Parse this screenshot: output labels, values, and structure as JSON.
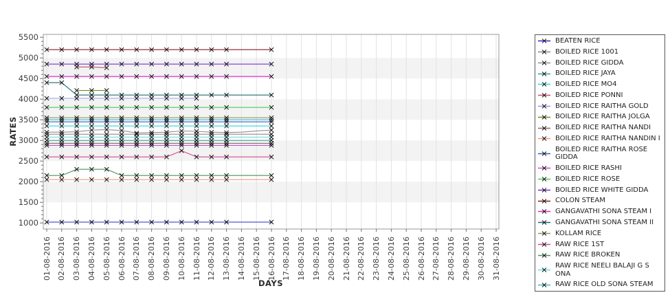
{
  "chart_data": {
    "type": "line",
    "title": "",
    "xlabel": "DAYS",
    "ylabel": "RATES",
    "ylim": [
      1000,
      5500
    ],
    "y_tick_step": 500,
    "y_ticks": [
      1000,
      1500,
      2000,
      2500,
      3000,
      3500,
      4000,
      4500,
      5000,
      5500
    ],
    "grid": true,
    "legend_position": "right",
    "marker_style": "x",
    "marker_color": "#111111",
    "band_color": "#f3f3f3",
    "x_labels": [
      "01-08-2016",
      "02-08-2016",
      "03-08-2016",
      "04-08-2016",
      "05-08-2016",
      "06-08-2016",
      "07-08-2016",
      "08-08-2016",
      "09-08-2016",
      "10-08-2016",
      "11-08-2016",
      "12-08-2016",
      "13-08-2016",
      "14-08-2016",
      "15-08-2016",
      "16-08-2016",
      "17-08-2016",
      "18-08-2016",
      "19-08-2016",
      "20-08-2016",
      "21-08-2016",
      "22-08-2016",
      "23-08-2016",
      "24-08-2016",
      "25-08-2016",
      "26-08-2016",
      "27-08-2016",
      "28-08-2016",
      "29-08-2016",
      "30-08-2016",
      "31-08-2016"
    ],
    "data_day_count": 16,
    "marker_days": [
      1,
      2,
      3,
      4,
      5,
      6,
      7,
      8,
      9,
      10,
      11,
      12,
      13,
      16
    ],
    "series": [
      {
        "name": "BEATEN RICE",
        "color": "#2929c8",
        "values": [
          1020,
          1020,
          1020,
          1020,
          1020,
          1020,
          1020,
          1020,
          1020,
          1020,
          1020,
          1020,
          1020,
          1020,
          1020,
          1020
        ]
      },
      {
        "name": "BOILED RICE 1001",
        "color": "#9e8080",
        "values": [
          3150,
          3150,
          3150,
          3150,
          3150,
          3150,
          3150,
          3150,
          3150,
          3150,
          3150,
          3150,
          3150,
          3150,
          3150,
          3150
        ]
      },
      {
        "name": "BOILED RICE GIDDA",
        "color": "#8f8f8f",
        "values": [
          3200,
          3200,
          3210,
          3250,
          3260,
          3240,
          3180,
          3190,
          3200,
          3230,
          3220,
          3200,
          3190,
          3200,
          3230,
          3250
        ]
      },
      {
        "name": "BOILED RICE JAYA",
        "color": "#33a0a0",
        "values": [
          3000,
          3000,
          3000,
          3000,
          3000,
          3000,
          3000,
          3000,
          3000,
          3000,
          3000,
          3000,
          3000,
          3000,
          3000,
          3000
        ]
      },
      {
        "name": "BOILED RICE MO4",
        "color": "#2fd0e0",
        "values": [
          3350,
          3350,
          3350,
          3350,
          3350,
          3350,
          3350,
          3350,
          3350,
          3350,
          3350,
          3350,
          3350,
          3350,
          3350,
          3350
        ]
      },
      {
        "name": "BOILED RICE PONNI",
        "color": "#c94a6e",
        "values": [
          null,
          null,
          4780,
          4780,
          4760,
          null,
          null,
          null,
          null,
          null,
          null,
          null,
          null,
          null,
          null,
          null
        ]
      },
      {
        "name": "BOILED RICE RAITHA GOLD",
        "color": "#8c9ae8",
        "values": [
          4020,
          4020,
          4020,
          4020,
          4020,
          4020,
          4020,
          4020,
          4020,
          4020,
          4020,
          null,
          null,
          null,
          null,
          null
        ]
      },
      {
        "name": "BOILED RICE RAITHA JOLGA",
        "color": "#6b8e23",
        "values": [
          null,
          null,
          4210,
          4210,
          4210,
          null,
          null,
          null,
          null,
          null,
          null,
          null,
          null,
          null,
          null,
          null
        ]
      },
      {
        "name": "BOILED RICE RAITHA NANDI",
        "color": "#8d6a6a",
        "values": [
          2930,
          2930,
          2930,
          2930,
          2930,
          2930,
          2930,
          2930,
          2930,
          2930,
          2930,
          2930,
          2930,
          2930,
          2930,
          2930
        ]
      },
      {
        "name": "BOILED RICE RAITHA NANDIN I",
        "color": "#ef9a76",
        "values": [
          2050,
          2050,
          2050,
          2050,
          2050,
          2050,
          2050,
          2050,
          2050,
          2050,
          2050,
          2050,
          2050,
          2050,
          2050,
          2050
        ]
      },
      {
        "name": "BOILED RICE RAITHA ROSE GIDDA",
        "color": "#3a57c0",
        "values": [
          3450,
          3450,
          3450,
          3450,
          3450,
          3450,
          3450,
          3450,
          3450,
          3450,
          3450,
          3450,
          3450,
          3450,
          3450,
          3450
        ]
      },
      {
        "name": "BOILED RICE RASHI",
        "color": "#c94fc9",
        "values": [
          2880,
          2880,
          2880,
          2880,
          2880,
          2880,
          2880,
          2880,
          2880,
          2880,
          2880,
          2880,
          2880,
          2880,
          2880,
          2880
        ]
      },
      {
        "name": "BOILED RICE ROSE",
        "color": "#4ecb5a",
        "values": [
          3800,
          3800,
          3800,
          3800,
          3800,
          3800,
          3800,
          3800,
          3800,
          3800,
          3800,
          3800,
          3800,
          3800,
          3800,
          3800
        ]
      },
      {
        "name": "BOILED RICE WHITE GIDDA",
        "color": "#7a2fd4",
        "values": [
          4850,
          4850,
          4850,
          4850,
          4850,
          4850,
          4850,
          4850,
          4850,
          4850,
          4850,
          4850,
          4850,
          4850,
          4850,
          4850
        ]
      },
      {
        "name": "COLON STEAM",
        "color": "#8b1a1a",
        "values": [
          5200,
          5200,
          5200,
          5200,
          5200,
          5200,
          5200,
          5200,
          5200,
          5200,
          5200,
          5200,
          5200,
          5200,
          5200,
          5200
        ]
      },
      {
        "name": "GANGAVATHI SONA STEAM I",
        "color": "#e321c9",
        "values": [
          4550,
          4550,
          4550,
          4550,
          4550,
          4550,
          4550,
          4550,
          4550,
          4550,
          4550,
          4550,
          4550,
          4550,
          4550,
          4550
        ]
      },
      {
        "name": "GANGAVATHI SONA STEAM II",
        "color": "#1e6b72",
        "values": [
          4400,
          4400,
          4100,
          4100,
          4100,
          4100,
          4100,
          4100,
          4100,
          4100,
          4100,
          4100,
          4100,
          4100,
          4100,
          4100
        ]
      },
      {
        "name": "KOLLAM RICE",
        "color": "#8a9a5b",
        "values": [
          3550,
          3550,
          3550,
          3550,
          3550,
          3550,
          3550,
          3550,
          3550,
          3550,
          3550,
          3550,
          3550,
          3550,
          3550,
          3550
        ]
      },
      {
        "name": "RAW RICE 1ST",
        "color": "#d4488e",
        "values": [
          2600,
          2600,
          2600,
          2600,
          2600,
          2600,
          2600,
          2600,
          2600,
          2750,
          2600,
          2600,
          2600,
          2600,
          2600,
          2600
        ]
      },
      {
        "name": "RAW RICE BROKEN",
        "color": "#4e8f63",
        "values": [
          2150,
          2150,
          2300,
          2300,
          2300,
          2150,
          2150,
          2150,
          2150,
          2150,
          2150,
          2150,
          2150,
          2150,
          2150,
          2150
        ]
      },
      {
        "name": "RAW RICE NEELI BALAJI G S ONA",
        "color": "#6adede",
        "values": [
          3080,
          3080,
          3080,
          3080,
          3080,
          3080,
          3080,
          3080,
          3080,
          3080,
          3080,
          3080,
          3080,
          3080,
          3080,
          3080
        ]
      },
      {
        "name": "RAW RICE OLD SONA STEAM",
        "color": "#3bb8c9",
        "values": [
          3500,
          3500,
          3500,
          3500,
          3500,
          3500,
          3500,
          3500,
          3500,
          3500,
          3500,
          3500,
          3500,
          3500,
          3500,
          3500
        ]
      }
    ]
  }
}
